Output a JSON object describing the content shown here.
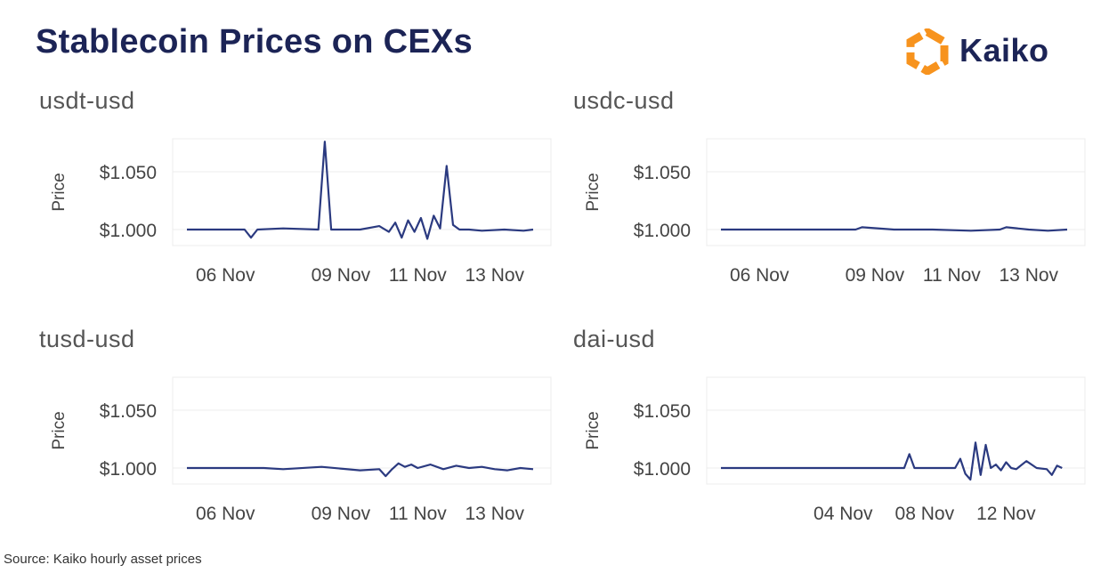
{
  "title": "Stablecoin Prices on CEXs",
  "brand": {
    "name": "Kaiko",
    "logo_color": "#f7931e",
    "text_color": "#1c2456"
  },
  "source": "Source: Kaiko hourly asset prices",
  "colors": {
    "line": "#2b3a80",
    "grid": "#ececec",
    "tick_text": "#444444"
  },
  "chart_data": [
    {
      "type": "line",
      "title": "usdt-usd",
      "ylabel": "Price",
      "ylim": [
        0.985,
        1.08
      ],
      "yticks": [
        1.0,
        1.05
      ],
      "ytick_labels": [
        "$1.000",
        "$1.050"
      ],
      "xlim": [
        "2022-11-05",
        "2022-11-14"
      ],
      "xticks": [
        "2022-11-06",
        "2022-11-09",
        "2022-11-11",
        "2022-11-13"
      ],
      "xtick_labels": [
        "06 Nov",
        "09 Nov",
        "11 Nov",
        "13 Nov"
      ],
      "series": [
        {
          "x": [
            "2022-11-05 00:00",
            "2022-11-06 12:00",
            "2022-11-06 16:00",
            "2022-11-06 20:00",
            "2022-11-07 12:00",
            "2022-11-08 10:00",
            "2022-11-08 14:00",
            "2022-11-08 18:00",
            "2022-11-09 12:00",
            "2022-11-10 00:00",
            "2022-11-10 06:00",
            "2022-11-10 10:00",
            "2022-11-10 14:00",
            "2022-11-10 18:00",
            "2022-11-10 22:00",
            "2022-11-11 02:00",
            "2022-11-11 06:00",
            "2022-11-11 10:00",
            "2022-11-11 14:00",
            "2022-11-11 18:00",
            "2022-11-11 22:00",
            "2022-11-12 02:00",
            "2022-11-12 08:00",
            "2022-11-12 16:00",
            "2022-11-13 06:00",
            "2022-11-13 18:00",
            "2022-11-14 00:00"
          ],
          "y": [
            1.0,
            1.0,
            0.993,
            1.0,
            1.001,
            1.0,
            1.076,
            1.0,
            1.0,
            1.003,
            0.998,
            1.006,
            0.993,
            1.008,
            0.998,
            1.01,
            0.992,
            1.012,
            1.001,
            1.055,
            1.004,
            1.0,
            1.0,
            0.999,
            1.0,
            0.999,
            1.0
          ]
        }
      ]
    },
    {
      "type": "line",
      "title": "usdc-usd",
      "ylabel": "Price",
      "ylim": [
        0.985,
        1.08
      ],
      "yticks": [
        1.0,
        1.05
      ],
      "ytick_labels": [
        "$1.000",
        "$1.050"
      ],
      "xlim": [
        "2022-11-05",
        "2022-11-14"
      ],
      "xticks": [
        "2022-11-06",
        "2022-11-09",
        "2022-11-11",
        "2022-11-13"
      ],
      "xtick_labels": [
        "06 Nov",
        "09 Nov",
        "11 Nov",
        "13 Nov"
      ],
      "series": [
        {
          "x": [
            "2022-11-05 00:00",
            "2022-11-07 00:00",
            "2022-11-08 12:00",
            "2022-11-08 16:00",
            "2022-11-09 12:00",
            "2022-11-10 12:00",
            "2022-11-11 12:00",
            "2022-11-12 06:00",
            "2022-11-12 10:00",
            "2022-11-13 00:00",
            "2022-11-13 12:00",
            "2022-11-14 00:00"
          ],
          "y": [
            1.0,
            1.0,
            1.0,
            1.002,
            1.0,
            1.0,
            0.999,
            1.0,
            1.002,
            1.0,
            0.999,
            1.0
          ]
        }
      ]
    },
    {
      "type": "line",
      "title": "tusd-usd",
      "ylabel": "Price",
      "ylim": [
        0.985,
        1.08
      ],
      "yticks": [
        1.0,
        1.05
      ],
      "ytick_labels": [
        "$1.000",
        "$1.050"
      ],
      "xlim": [
        "2022-11-05",
        "2022-11-14"
      ],
      "xticks": [
        "2022-11-06",
        "2022-11-09",
        "2022-11-11",
        "2022-11-13"
      ],
      "xtick_labels": [
        "06 Nov",
        "09 Nov",
        "11 Nov",
        "13 Nov"
      ],
      "series": [
        {
          "x": [
            "2022-11-05 00:00",
            "2022-11-07 00:00",
            "2022-11-07 12:00",
            "2022-11-08 12:00",
            "2022-11-09 12:00",
            "2022-11-10 00:00",
            "2022-11-10 04:00",
            "2022-11-10 08:00",
            "2022-11-10 12:00",
            "2022-11-10 16:00",
            "2022-11-10 20:00",
            "2022-11-11 00:00",
            "2022-11-11 08:00",
            "2022-11-11 16:00",
            "2022-11-12 00:00",
            "2022-11-12 08:00",
            "2022-11-12 16:00",
            "2022-11-13 00:00",
            "2022-11-13 08:00",
            "2022-11-13 16:00",
            "2022-11-14 00:00"
          ],
          "y": [
            1.0,
            1.0,
            0.999,
            1.001,
            0.998,
            0.999,
            0.993,
            0.999,
            1.004,
            1.001,
            1.003,
            1.0,
            1.003,
            0.999,
            1.002,
            1.0,
            1.001,
            0.999,
            0.998,
            1.0,
            0.999
          ]
        }
      ]
    },
    {
      "type": "line",
      "title": "dai-usd",
      "ylabel": "Price",
      "ylim": [
        0.985,
        1.08
      ],
      "yticks": [
        1.0,
        1.05
      ],
      "ytick_labels": [
        "$1.000",
        "$1.050"
      ],
      "xlim": [
        "2022-10-29",
        "2022-11-15"
      ],
      "xticks": [
        "2022-11-04",
        "2022-11-08",
        "2022-11-12"
      ],
      "xtick_labels": [
        "04 Nov",
        "08 Nov",
        "12 Nov"
      ],
      "series": [
        {
          "x": [
            "2022-10-29 00:00",
            "2022-11-07 00:00",
            "2022-11-07 06:00",
            "2022-11-07 12:00",
            "2022-11-09 12:00",
            "2022-11-09 18:00",
            "2022-11-10 00:00",
            "2022-11-10 06:00",
            "2022-11-10 12:00",
            "2022-11-10 18:00",
            "2022-11-11 00:00",
            "2022-11-11 06:00",
            "2022-11-11 12:00",
            "2022-11-11 18:00",
            "2022-11-12 00:00",
            "2022-11-12 06:00",
            "2022-11-12 12:00",
            "2022-11-13 00:00",
            "2022-11-13 12:00",
            "2022-11-14 00:00",
            "2022-11-14 06:00",
            "2022-11-14 12:00",
            "2022-11-14 18:00"
          ],
          "y": [
            1.0,
            1.0,
            1.012,
            1.0,
            1.0,
            1.008,
            0.995,
            0.99,
            1.022,
            0.994,
            1.02,
            1.0,
            1.003,
            0.998,
            1.005,
            1.0,
            0.999,
            1.006,
            1.0,
            0.999,
            0.994,
            1.002,
            1.0
          ]
        }
      ]
    }
  ]
}
